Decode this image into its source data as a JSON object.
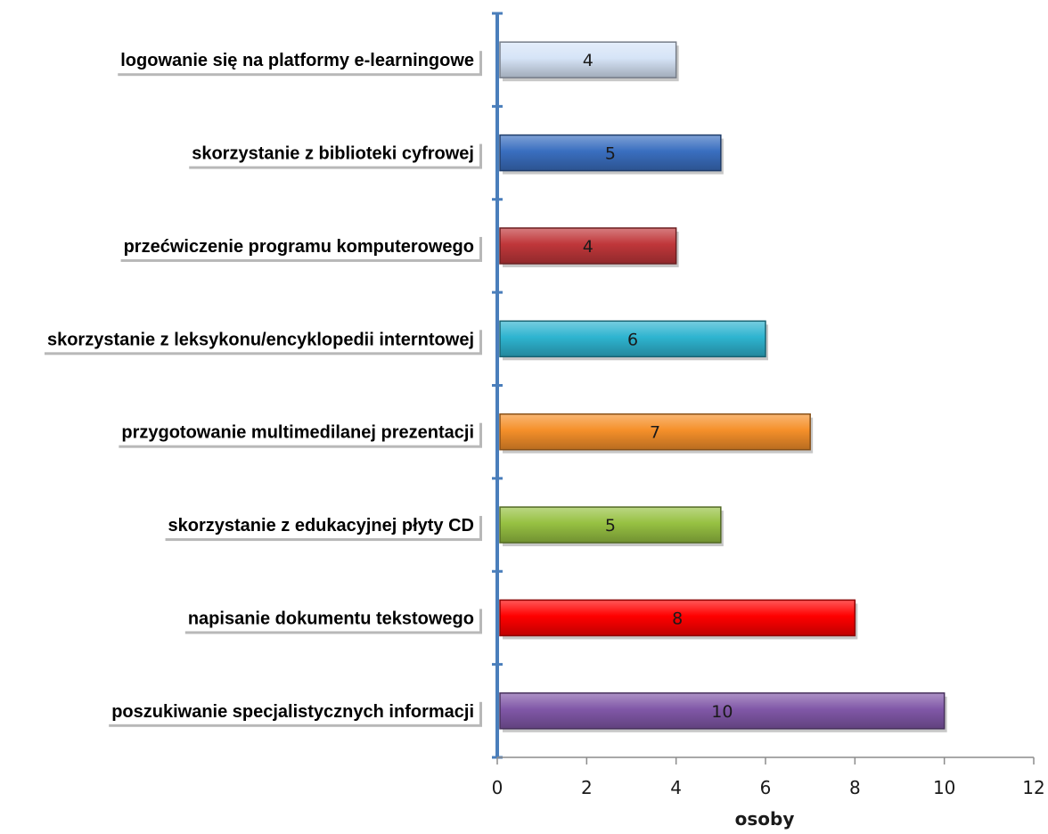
{
  "chart_data": {
    "type": "bar",
    "orientation": "horizontal",
    "categories": [
      "logowanie się na platformy e-learningowe",
      "skorzystanie z biblioteki cyfrowej",
      "przećwiczenie programu komputerowego",
      "skorzystanie z leksykonu/encyklopedii interntowej",
      "przygotowanie multimedilanej prezentacji",
      "skorzystanie z edukacyjnej płyty CD",
      "napisanie dokumentu tekstowego",
      "poszukiwanie specjalistycznych informacji"
    ],
    "values": [
      4,
      5,
      4,
      6,
      7,
      5,
      8,
      10
    ],
    "value_labels": [
      "4",
      "5",
      "4",
      "6",
      "7",
      "5",
      "8",
      "10"
    ],
    "colors": [
      "#d6e4f7",
      "#3a6fc0",
      "#c0373a",
      "#2eb4d0",
      "#f5902a",
      "#97c142",
      "#ff0000",
      "#8158a8"
    ],
    "xlabel": "osoby",
    "ylabel": "",
    "title": "",
    "xlim": [
      0,
      12
    ],
    "xticks": [
      "0",
      "2",
      "4",
      "6",
      "8",
      "10",
      "12"
    ],
    "grid": false,
    "legend": "none"
  }
}
